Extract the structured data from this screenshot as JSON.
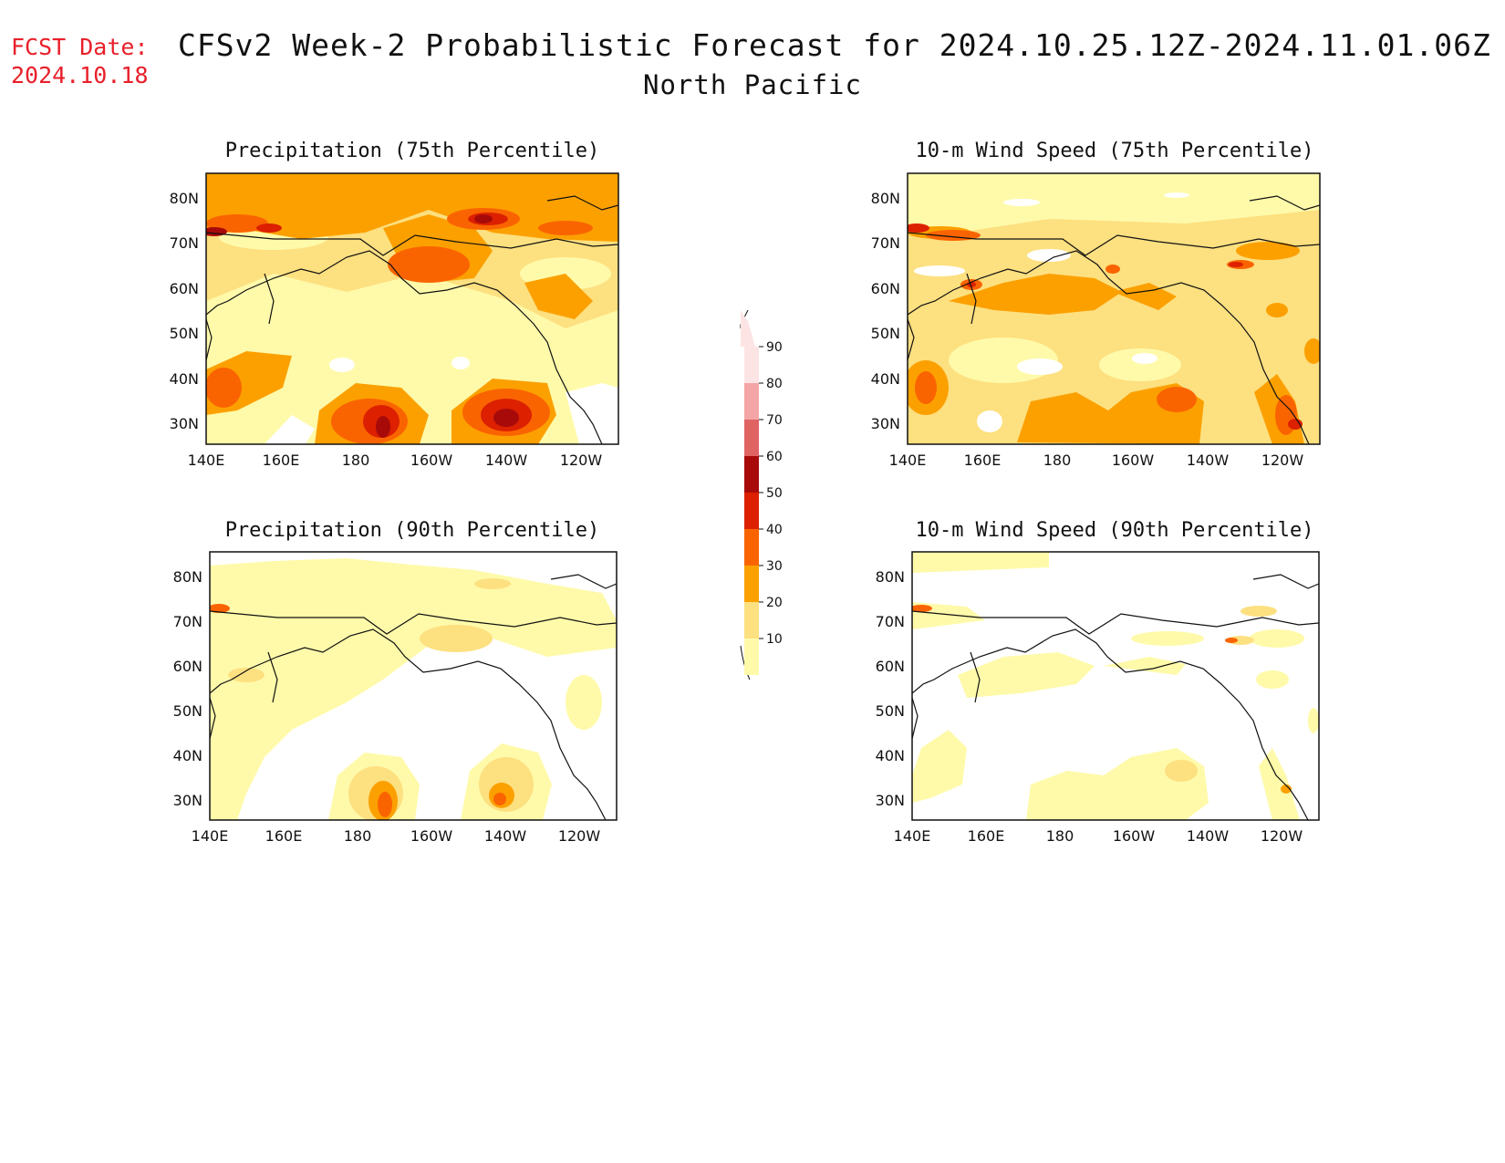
{
  "header": {
    "fcst_label": "FCST Date:",
    "fcst_date": "2024.10.18",
    "title": "CFSv2 Week-2 Probabilistic Forecast for 2024.10.25.12Z-2024.11.01.06Z",
    "subtitle": "North Pacific"
  },
  "axes": {
    "lon_ticks": [
      "140E",
      "160E",
      "180",
      "160W",
      "140W",
      "120W"
    ],
    "lat_ticks": [
      "80N",
      "70N",
      "60N",
      "50N",
      "40N",
      "30N"
    ]
  },
  "colorbar": {
    "levels": [
      "90",
      "80",
      "70",
      "60",
      "50",
      "40",
      "30",
      "20",
      "10"
    ],
    "colors": [
      "#fde4e4",
      "#f4a6a6",
      "#e06464",
      "#a80a0a",
      "#dc2000",
      "#fa6400",
      "#fca000",
      "#fde080",
      "#fffaaa"
    ]
  },
  "panels": [
    {
      "id": "precip75",
      "title": "Precipitation (75th Percentile)"
    },
    {
      "id": "wind75",
      "title": "10-m Wind Speed (75th Percentile)"
    },
    {
      "id": "precip90",
      "title": "Precipitation (90th Percentile)"
    },
    {
      "id": "wind90",
      "title": "10-m Wind Speed (90th Percentile)"
    }
  ]
}
